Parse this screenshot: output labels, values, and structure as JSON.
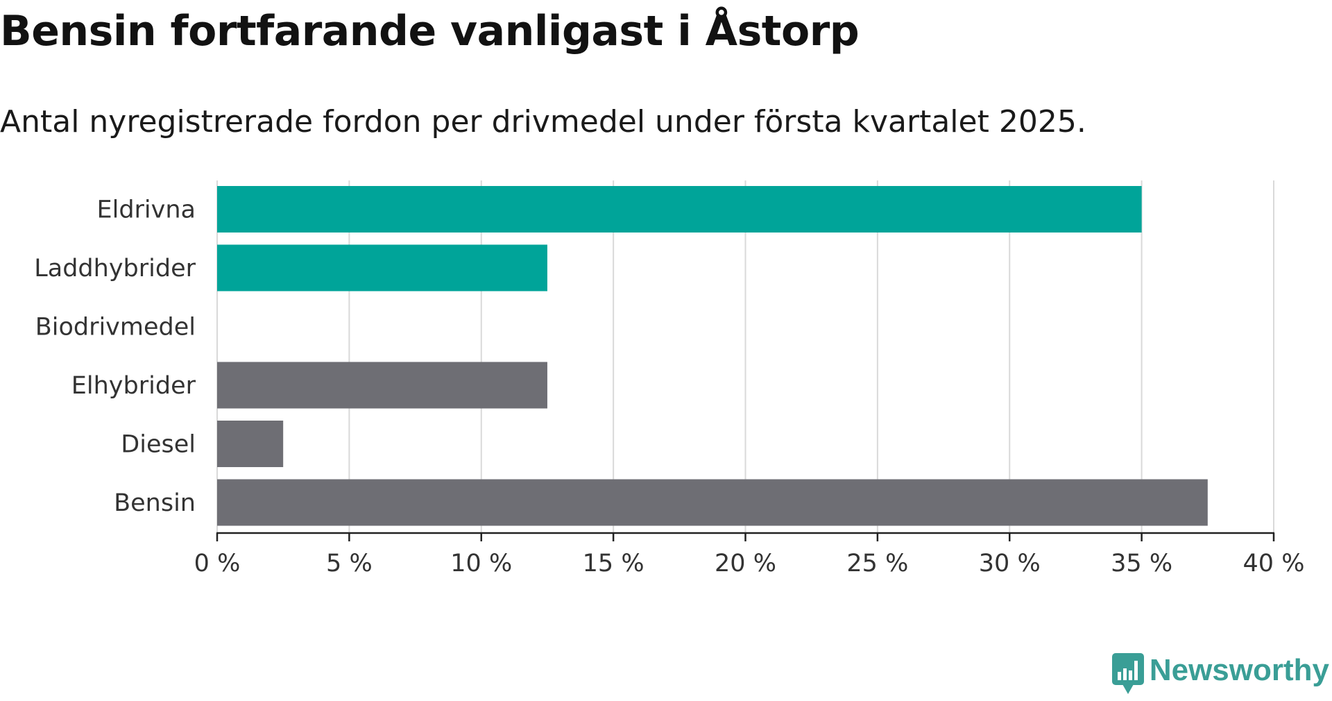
{
  "title": "Bensin fortfarande vanligast i Åstorp",
  "subtitle": "Antal nyregistrerade fordon per drivmedel under första kvartalet 2025.",
  "brand": {
    "name": "Newsworthy",
    "color": "#3a9e96"
  },
  "colors": {
    "highlight": "#00a499",
    "other": "#6e6e74",
    "grid": "#d9d9d9",
    "axis": "#222222",
    "label": "#333333"
  },
  "chart_data": {
    "type": "bar",
    "orientation": "horizontal",
    "categories": [
      "Eldrivna",
      "Laddhybrider",
      "Biodrivmedel",
      "Elhybrider",
      "Diesel",
      "Bensin"
    ],
    "values": [
      35,
      12.5,
      0,
      12.5,
      2.5,
      37.5
    ],
    "highlighted": [
      true,
      true,
      false,
      false,
      false,
      false
    ],
    "unit": "%",
    "xlim": [
      0,
      40
    ],
    "xticks": [
      0,
      5,
      10,
      15,
      20,
      25,
      30,
      35,
      40
    ],
    "xtick_labels": [
      "0 %",
      "5 %",
      "10 %",
      "15 %",
      "20 %",
      "25 %",
      "30 %",
      "35 %",
      "40 %"
    ],
    "grid": "vertical",
    "legend": "none",
    "title": "Bensin fortfarande vanligast i Åstorp",
    "subtitle": "Antal nyregistrerade fordon per drivmedel under första kvartalet 2025."
  }
}
